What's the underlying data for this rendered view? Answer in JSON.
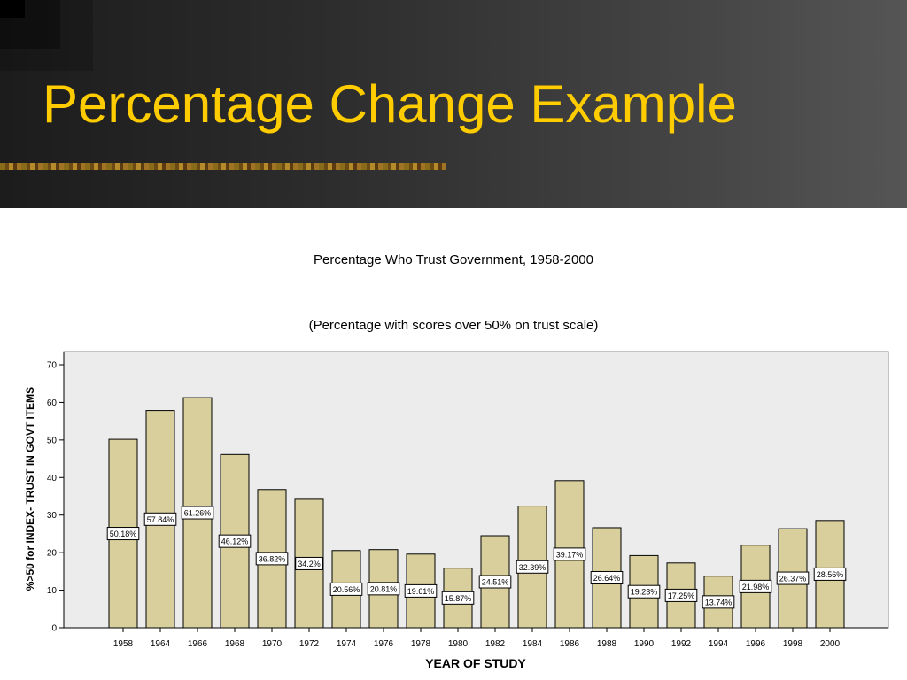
{
  "slide": {
    "title": "Percentage Change Example",
    "colors": {
      "title": "#ffcc00",
      "header_bg": "#333333"
    }
  },
  "chart_data": {
    "type": "bar",
    "title": "Percentage Who Trust Government, 1958-2000",
    "subtitle": "(Percentage with scores over 50% on trust scale)",
    "xlabel": "YEAR OF STUDY",
    "ylabel": "%>50 for INDEX- TRUST IN GOVT ITEMS",
    "categories": [
      "1958",
      "1964",
      "1966",
      "1968",
      "1970",
      "1972",
      "1974",
      "1976",
      "1978",
      "1980",
      "1982",
      "1984",
      "1986",
      "1988",
      "1990",
      "1992",
      "1994",
      "1996",
      "1998",
      "2000"
    ],
    "values": [
      50.18,
      57.84,
      61.26,
      46.12,
      36.82,
      34.2,
      20.56,
      20.81,
      19.61,
      15.87,
      24.51,
      32.39,
      39.17,
      26.64,
      19.23,
      17.25,
      13.74,
      21.98,
      26.37,
      28.56
    ],
    "data_labels": [
      "50.18%",
      "57.84%",
      "61.26%",
      "46.12%",
      "36.82%",
      "34.2%",
      "20.56%",
      "20.81%",
      "19.61%",
      "15.87%",
      "24.51%",
      "32.39%",
      "39.17%",
      "26.64%",
      "19.23%",
      "17.25%",
      "13.74%",
      "21.98%",
      "26.37%",
      "28.56%"
    ],
    "y_ticks": [
      "0",
      "10",
      "20",
      "30",
      "40",
      "50",
      "60",
      "70"
    ],
    "ylim": [
      0,
      70
    ],
    "grid": false,
    "legend": "none",
    "colors": {
      "bar_fill": "#d8cf9c",
      "bar_stroke": "#000000",
      "plot_bg": "#ececec"
    }
  }
}
